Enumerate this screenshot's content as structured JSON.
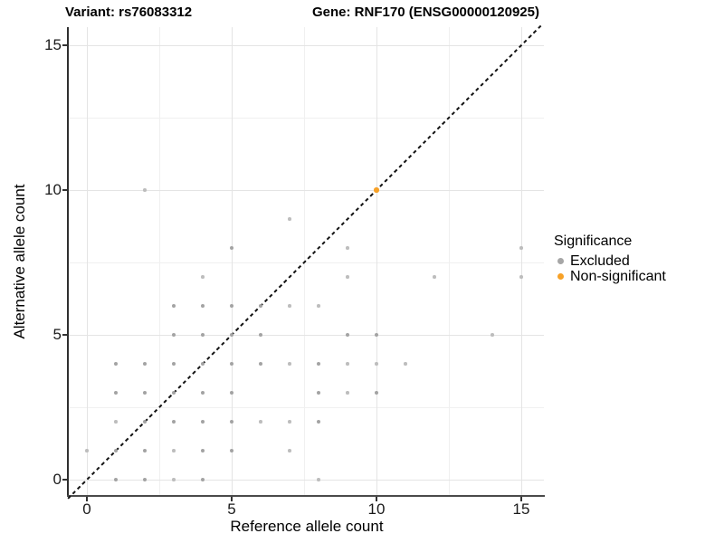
{
  "titles": {
    "variant": "Variant: rs76083312",
    "gene": "Gene: RNF170 (ENSG00000120925)"
  },
  "legend": {
    "title": "Significance",
    "items": [
      {
        "label": "Excluded",
        "color": "#a6a6a6"
      },
      {
        "label": "Non-significant",
        "color": "#f7a127"
      }
    ]
  },
  "colors": {
    "excluded_normal": "#a3a3a3",
    "excluded_small": "#bdbdbd",
    "non_significant": "#f7a127",
    "major_grid": "#e4e4e4",
    "minor_grid": "#f0f0f0",
    "identity_line": "#141414"
  },
  "chart_data": {
    "type": "scatter",
    "title": "Variant: rs76083312 — Gene: RNF170 (ENSG00000120925)",
    "xlabel": "Reference allele count",
    "ylabel": "Alternative allele count",
    "xlim": [
      -0.66,
      15.8
    ],
    "ylim": [
      -0.66,
      15.66
    ],
    "x_ticks": [
      0,
      5,
      10,
      15
    ],
    "y_ticks": [
      0,
      5,
      10,
      15
    ],
    "minor_gridlines": [
      2.5,
      7.5,
      12.5
    ],
    "grid": true,
    "legend_position": "right",
    "identity_line": {
      "from": -0.66,
      "to": 15.66,
      "style": "dashed",
      "color": "#141414"
    },
    "series": [
      {
        "name": "Excluded",
        "note": "points are [reference_count, alternative_count, size_class] where 2=normal dot, 1=small/faint dot",
        "points": [
          [
            1,
            0,
            2
          ],
          [
            2,
            0,
            2
          ],
          [
            3,
            0,
            1
          ],
          [
            4,
            0,
            2
          ],
          [
            8,
            0,
            1
          ],
          [
            0,
            1,
            1
          ],
          [
            1,
            1,
            2
          ],
          [
            2,
            1,
            2
          ],
          [
            3,
            1,
            1
          ],
          [
            4,
            1,
            2
          ],
          [
            5,
            1,
            2
          ],
          [
            7,
            1,
            1
          ],
          [
            1,
            2,
            1
          ],
          [
            2,
            2,
            2
          ],
          [
            3,
            2,
            2
          ],
          [
            4,
            2,
            2
          ],
          [
            5,
            2,
            2
          ],
          [
            6,
            2,
            1
          ],
          [
            7,
            2,
            1
          ],
          [
            8,
            2,
            2
          ],
          [
            1,
            3,
            2
          ],
          [
            2,
            3,
            2
          ],
          [
            3,
            3,
            2
          ],
          [
            4,
            3,
            2
          ],
          [
            5,
            3,
            2
          ],
          [
            8,
            3,
            2
          ],
          [
            9,
            3,
            1
          ],
          [
            10,
            3,
            2
          ],
          [
            1,
            4,
            2
          ],
          [
            2,
            4,
            2
          ],
          [
            3,
            4,
            2
          ],
          [
            4,
            4,
            2
          ],
          [
            5,
            4,
            2
          ],
          [
            6,
            4,
            2
          ],
          [
            7,
            4,
            1
          ],
          [
            8,
            4,
            2
          ],
          [
            9,
            4,
            1
          ],
          [
            10,
            4,
            1
          ],
          [
            11,
            4,
            1
          ],
          [
            3,
            5,
            2
          ],
          [
            4,
            5,
            2
          ],
          [
            5,
            5,
            2
          ],
          [
            6,
            5,
            2
          ],
          [
            9,
            5,
            2
          ],
          [
            10,
            5,
            2
          ],
          [
            14,
            5,
            1
          ],
          [
            3,
            6,
            2
          ],
          [
            4,
            6,
            2
          ],
          [
            5,
            6,
            2
          ],
          [
            6,
            6,
            2
          ],
          [
            7,
            6,
            1
          ],
          [
            8,
            6,
            1
          ],
          [
            4,
            7,
            1
          ],
          [
            9,
            7,
            1
          ],
          [
            12,
            7,
            1
          ],
          [
            15,
            7,
            1
          ],
          [
            5,
            8,
            2
          ],
          [
            9,
            8,
            1
          ],
          [
            15,
            8,
            1
          ],
          [
            7,
            9,
            1
          ],
          [
            2,
            10,
            1
          ]
        ]
      },
      {
        "name": "Non-significant",
        "points": [
          [
            10,
            10,
            2
          ]
        ]
      }
    ]
  }
}
